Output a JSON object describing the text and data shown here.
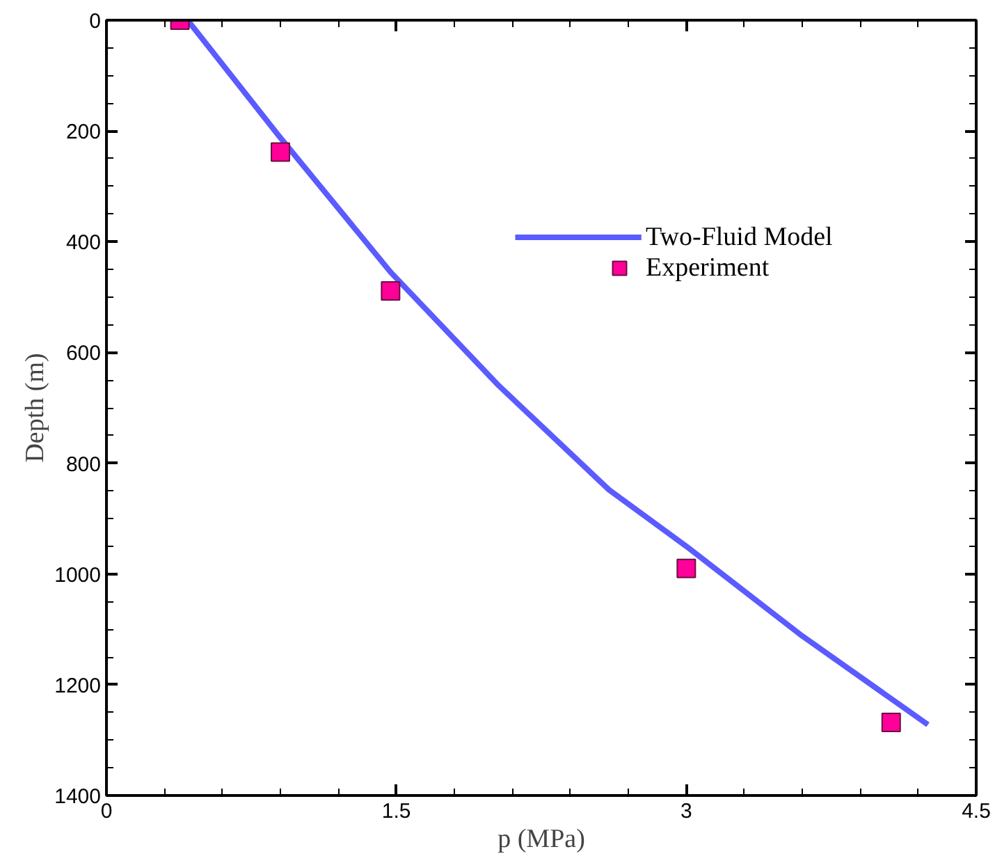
{
  "chart_data": {
    "type": "line",
    "xlabel": "p (MPa)",
    "ylabel": "Depth (m)",
    "xlim": [
      0,
      4.5
    ],
    "xticks": [
      0,
      1.5,
      3,
      4.5
    ],
    "ylim": [
      1400,
      0
    ],
    "yticks": [
      0,
      200,
      400,
      600,
      800,
      1000,
      1200,
      1400
    ],
    "grid": false,
    "legend": "right",
    "series": [
      {
        "name": "Two-Fluid Model",
        "color": "#5b5bff",
        "marker": "none",
        "line_style": "solid",
        "x": [
          0.42,
          0.89,
          1.47,
          2.03,
          2.6,
          3.0,
          3.6,
          4.25
        ],
        "values": [
          0,
          208,
          455,
          660,
          848,
          950,
          1112,
          1272
        ]
      },
      {
        "name": "Experiment",
        "type": "scatter",
        "color": "#ff0099",
        "marker": "square",
        "x": [
          0.38,
          0.9,
          1.47,
          3.0,
          4.06
        ],
        "values": [
          0,
          238,
          489,
          990,
          1268
        ]
      }
    ]
  }
}
